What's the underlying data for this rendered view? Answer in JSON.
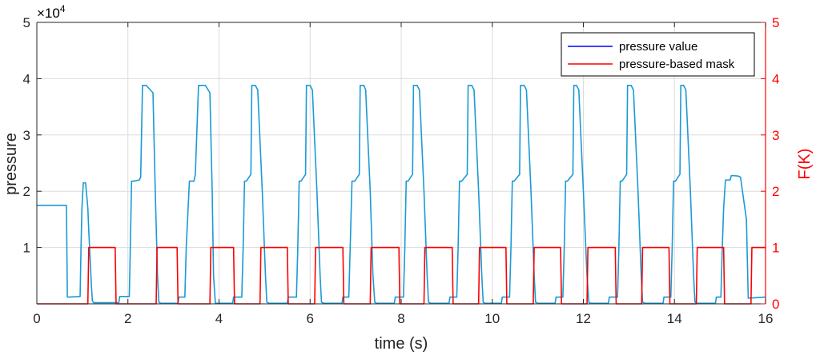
{
  "chart_data": {
    "type": "line",
    "xlabel": "time (s)",
    "ylabel_left": "pressure",
    "ylabel_right": "F(K)",
    "exponent_label": "×10^4",
    "xlim": [
      0,
      16
    ],
    "ylim_left": [
      0,
      50000
    ],
    "ylim_right": [
      0,
      5
    ],
    "x_ticks": [
      0,
      2,
      4,
      6,
      8,
      10,
      12,
      14,
      16
    ],
    "y_left_ticks": [
      1,
      2,
      3,
      4,
      5
    ],
    "y_right_ticks": [
      0,
      1,
      2,
      3,
      4,
      5
    ],
    "grid": true,
    "legend_position": "top-right",
    "colors": {
      "pressure": "#1a9ad6",
      "mask": "#ff0000",
      "right_axis": "#ff0000",
      "legend_pressure_line": "#0000ff"
    },
    "series": [
      {
        "name": "pressure value",
        "axis": "left",
        "x": [
          0,
          0.65,
          0.67,
          0.7,
          0.95,
          0.97,
          0.99,
          1.02,
          1.07,
          1.12,
          1.14,
          1.2,
          1.22,
          1.25,
          1.3,
          1.35,
          1.8,
          1.82,
          2.03,
          2.05,
          2.08,
          2.12,
          2.25,
          2.28,
          2.32,
          2.35,
          2.4,
          2.55,
          2.6,
          2.65,
          2.68,
          2.72,
          3.1,
          3.12,
          3.25,
          3.28,
          3.35,
          3.45,
          3.48,
          3.55,
          3.6,
          3.7,
          3.8,
          3.85,
          3.88,
          3.92,
          4.3,
          4.32,
          4.5,
          4.53,
          4.56,
          4.6,
          4.7,
          4.72,
          4.8,
          4.85,
          4.95,
          5.02,
          5.05,
          5.1,
          5.5,
          5.52,
          5.7,
          5.73,
          5.76,
          5.8,
          5.9,
          5.92,
          6.0,
          6.05,
          6.15,
          6.22,
          6.25,
          6.3,
          6.7,
          6.72,
          6.85,
          6.88,
          6.92,
          6.98,
          7.08,
          7.1,
          7.18,
          7.22,
          7.32,
          7.38,
          7.42,
          7.46,
          7.85,
          7.87,
          8.05,
          8.08,
          8.11,
          8.15,
          8.25,
          8.27,
          8.35,
          8.4,
          8.5,
          8.57,
          8.6,
          8.65,
          9.05,
          9.07,
          9.22,
          9.25,
          9.28,
          9.33,
          9.45,
          9.47,
          9.55,
          9.6,
          9.7,
          9.77,
          9.8,
          9.84,
          10.2,
          10.22,
          10.38,
          10.41,
          10.44,
          10.48,
          10.6,
          10.62,
          10.7,
          10.75,
          10.85,
          10.92,
          10.95,
          11.0,
          11.38,
          11.4,
          11.55,
          11.58,
          11.61,
          11.65,
          11.77,
          11.79,
          11.85,
          11.9,
          12.0,
          12.08,
          12.12,
          12.16,
          12.55,
          12.57,
          12.75,
          12.78,
          12.81,
          12.85,
          12.95,
          12.97,
          13.05,
          13.1,
          13.2,
          13.27,
          13.3,
          13.35,
          13.75,
          13.77,
          13.92,
          13.95,
          13.98,
          14.02,
          14.12,
          14.14,
          14.2,
          14.25,
          14.35,
          14.42,
          14.45,
          14.5,
          14.9,
          14.92,
          15.02,
          15.05,
          15.08,
          15.12,
          15.22,
          15.25,
          15.4,
          15.45,
          15.58,
          15.62,
          16.0,
          16.0
        ],
        "values": [
          17500,
          17500,
          1200,
          1200,
          1300,
          10000,
          17000,
          21500,
          21500,
          17000,
          13000,
          3000,
          500,
          200,
          200,
          200,
          200,
          1300,
          1300,
          9000,
          21800,
          21800,
          22000,
          22500,
          38800,
          38800,
          38800,
          37500,
          20000,
          5000,
          300,
          100,
          100,
          1200,
          1200,
          10000,
          21800,
          21800,
          23000,
          38800,
          38800,
          38800,
          37500,
          20000,
          5000,
          100,
          100,
          1200,
          1200,
          10000,
          21800,
          21800,
          23000,
          38800,
          38800,
          38000,
          20000,
          5000,
          300,
          100,
          100,
          1200,
          1200,
          10000,
          21800,
          21800,
          23000,
          38800,
          38800,
          38000,
          20000,
          5000,
          300,
          100,
          100,
          1200,
          1200,
          10000,
          21800,
          21800,
          23000,
          38800,
          38800,
          38000,
          20000,
          5000,
          300,
          100,
          100,
          1200,
          1200,
          10000,
          21800,
          21800,
          23000,
          38800,
          38800,
          38000,
          20000,
          5000,
          300,
          100,
          100,
          1200,
          1200,
          10000,
          21800,
          21800,
          23000,
          38800,
          38800,
          38000,
          20000,
          5000,
          300,
          100,
          100,
          1200,
          1200,
          10000,
          21800,
          21800,
          23000,
          38800,
          38800,
          38000,
          20000,
          5000,
          300,
          100,
          100,
          1200,
          1200,
          10000,
          21800,
          21800,
          23000,
          38800,
          38800,
          38000,
          20000,
          5000,
          300,
          100,
          100,
          1200,
          1200,
          10000,
          21800,
          21800,
          23000,
          38800,
          38800,
          38000,
          20000,
          5000,
          300,
          100,
          100,
          1200,
          1200,
          10000,
          21800,
          21800,
          23000,
          38800,
          38800,
          38000,
          20000,
          5000,
          300,
          100,
          100,
          1200,
          1200,
          10000,
          17000,
          22000,
          22000,
          22800,
          22700,
          22500,
          15000,
          1000,
          1200,
          1200
        ]
      },
      {
        "name": "pressure-based mask",
        "axis": "right",
        "x": [
          0,
          1.12,
          1.14,
          1.72,
          1.74,
          2.62,
          2.64,
          3.08,
          3.1,
          3.8,
          3.82,
          4.32,
          4.34,
          4.9,
          4.92,
          5.5,
          5.52,
          6.1,
          6.12,
          6.72,
          6.74,
          7.32,
          7.34,
          7.95,
          7.97,
          8.5,
          8.52,
          9.12,
          9.14,
          9.7,
          9.72,
          10.3,
          10.32,
          10.9,
          10.92,
          11.5,
          11.52,
          12.08,
          12.1,
          12.7,
          12.72,
          13.28,
          13.3,
          13.88,
          13.9,
          14.48,
          14.5,
          15.08,
          15.1,
          15.68,
          15.7,
          16.0
        ],
        "values": [
          0,
          0,
          1,
          1,
          0,
          0,
          1,
          1,
          0,
          0,
          1,
          1,
          0,
          0,
          1,
          1,
          0,
          0,
          1,
          1,
          0,
          0,
          1,
          1,
          0,
          0,
          1,
          1,
          0,
          0,
          1,
          1,
          0,
          0,
          1,
          1,
          0,
          0,
          1,
          1,
          0,
          0,
          1,
          1,
          0,
          0,
          1,
          1,
          0,
          0,
          1,
          1
        ]
      }
    ]
  }
}
